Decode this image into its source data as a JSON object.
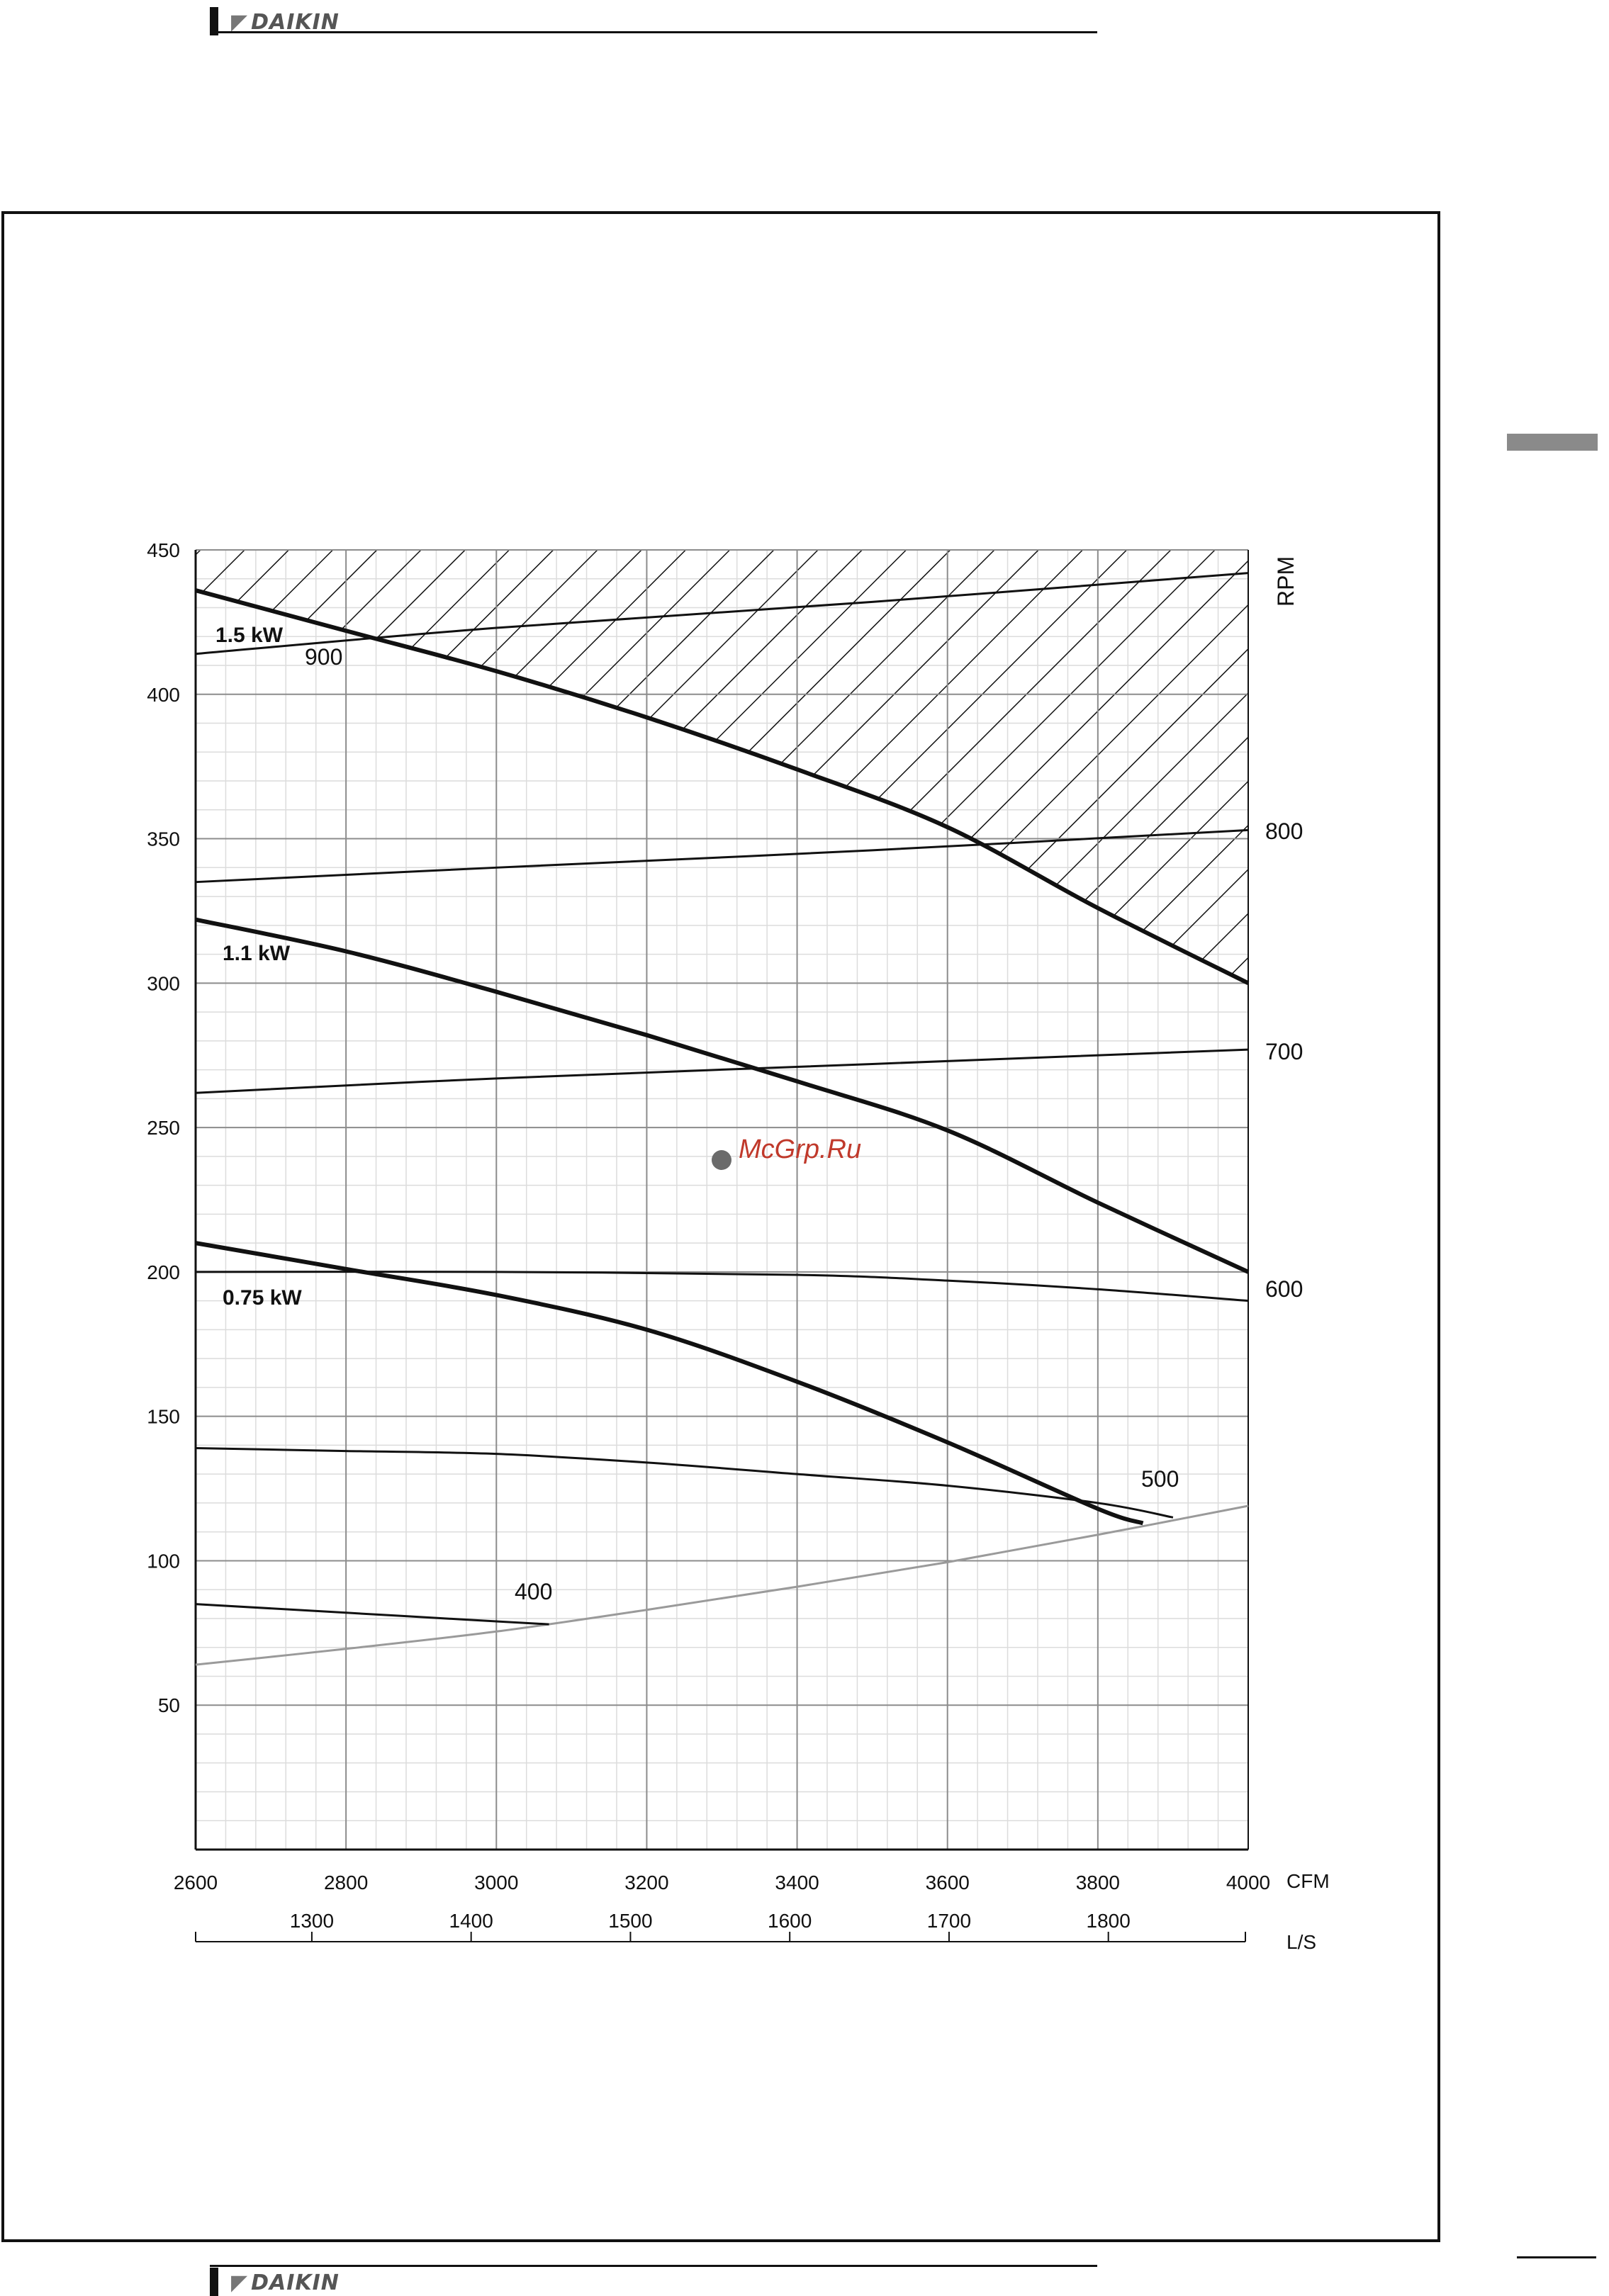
{
  "header": {
    "brand": "DAIKIN"
  },
  "footer": {
    "brand": "DAIKIN"
  },
  "watermark": {
    "text": "McGrp.Ru"
  },
  "chart_data": {
    "type": "line",
    "title": "",
    "xlabel": "CFM",
    "ylabel": "",
    "secondary_x_label": "L/S",
    "rpm_axis_label": "RPM",
    "xlim": [
      2600,
      4000
    ],
    "ylim": [
      0,
      450
    ],
    "x_ticks": [
      2600,
      2800,
      3000,
      3200,
      3400,
      3600,
      3800,
      4000
    ],
    "y_ticks": [
      50,
      100,
      150,
      200,
      250,
      300,
      350,
      400,
      450
    ],
    "ls_ticks": [
      1300,
      1400,
      1500,
      1600,
      1700,
      1800
    ],
    "grid": true,
    "hatched_region": "above 1.5 kW curve",
    "power_curves": [
      {
        "name": "1.5 kW",
        "x": [
          2600,
          2800,
          3000,
          3200,
          3400,
          3600,
          3800,
          4000
        ],
        "y": [
          436,
          422,
          408,
          392,
          374,
          354,
          326,
          300
        ]
      },
      {
        "name": "1.1 kW",
        "x": [
          2600,
          2800,
          3000,
          3200,
          3400,
          3600,
          3800,
          4000
        ],
        "y": [
          322,
          311,
          297,
          282,
          266,
          249,
          224,
          200
        ]
      },
      {
        "name": "0.75 kW",
        "x": [
          2600,
          2800,
          3000,
          3200,
          3400,
          3600,
          3800,
          3860
        ],
        "y": [
          210,
          201,
          192,
          180,
          162,
          141,
          118,
          113
        ]
      }
    ],
    "rpm_curves": [
      {
        "name": "900",
        "x": [
          2600,
          3000,
          3500,
          4000
        ],
        "y": [
          414,
          423,
          432,
          442
        ]
      },
      {
        "name": "800",
        "x": [
          2600,
          3000,
          3500,
          4000
        ],
        "y": [
          335,
          340,
          346,
          353
        ]
      },
      {
        "name": "700",
        "x": [
          2600,
          3000,
          3500,
          4000
        ],
        "y": [
          262,
          267,
          272,
          277
        ]
      },
      {
        "name": "600",
        "x": [
          2600,
          3000,
          3400,
          3600,
          3800,
          4000
        ],
        "y": [
          200,
          200,
          199,
          197,
          194,
          190
        ]
      },
      {
        "name": "500",
        "x": [
          2600,
          2800,
          3000,
          3200,
          3400,
          3600,
          3800,
          3900
        ],
        "y": [
          139,
          138,
          137,
          134,
          130,
          126,
          120,
          115
        ]
      },
      {
        "name": "400",
        "x": [
          2600,
          2800,
          3000,
          3070
        ],
        "y": [
          85,
          82,
          79,
          78
        ]
      }
    ],
    "system_curve": {
      "x": [
        2600,
        2800,
        3000,
        3200,
        3400,
        3600,
        3800,
        4000
      ],
      "y": [
        64,
        69.5,
        75.5,
        83,
        91,
        99.5,
        109,
        119
      ]
    }
  }
}
